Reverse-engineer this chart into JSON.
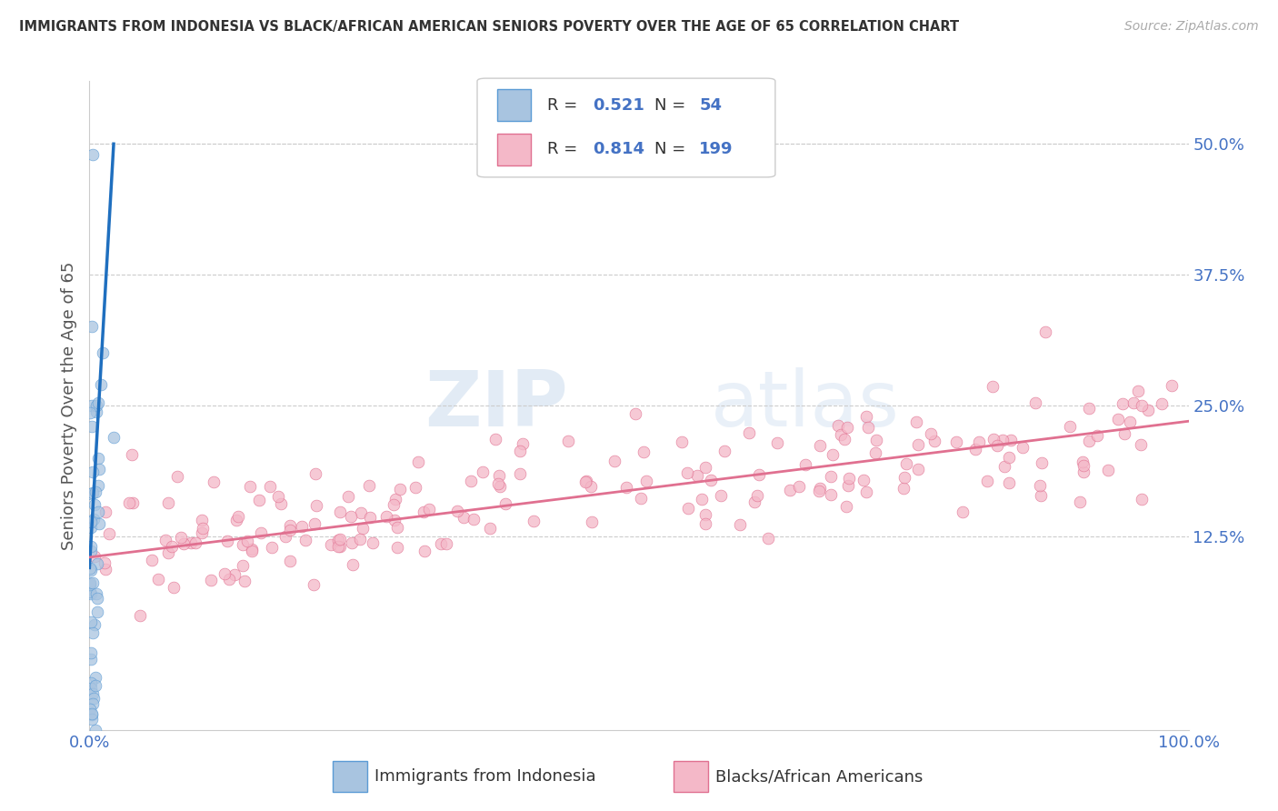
{
  "title": "IMMIGRANTS FROM INDONESIA VS BLACK/AFRICAN AMERICAN SENIORS POVERTY OVER THE AGE OF 65 CORRELATION CHART",
  "source": "Source: ZipAtlas.com",
  "ylabel": "Seniors Poverty Over the Age of 65",
  "xlim": [
    0.0,
    1.0
  ],
  "ylim": [
    -0.06,
    0.56
  ],
  "ytick_vals": [
    0.0,
    0.125,
    0.25,
    0.375,
    0.5
  ],
  "ytick_labels": [
    "",
    "12.5%",
    "25.0%",
    "37.5%",
    "50.0%"
  ],
  "xtick_vals": [
    0.0,
    1.0
  ],
  "xtick_labels": [
    "0.0%",
    "100.0%"
  ],
  "blue_R": 0.521,
  "blue_N": 54,
  "pink_R": 0.814,
  "pink_N": 199,
  "blue_color": "#a8c4e0",
  "blue_edge": "#5b9bd5",
  "pink_color": "#f4b8c8",
  "pink_edge": "#e07090",
  "blue_line_color": "#1f6fbf",
  "pink_line_color": "#e07090",
  "watermark_zip": "ZIP",
  "watermark_atlas": "atlas",
  "background_color": "#ffffff",
  "grid_color": "#cccccc",
  "tick_label_color": "#4472c4",
  "legend_label_color": "#4472c4",
  "title_color": "#333333",
  "ylabel_color": "#555555"
}
